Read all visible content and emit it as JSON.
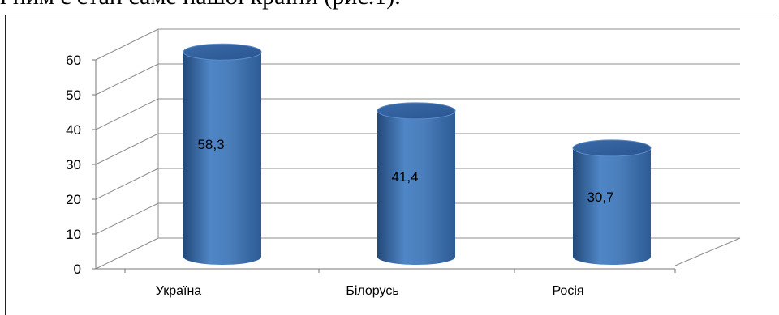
{
  "document": {
    "partial_text": "і ним є стан саме нашої країни (рис.1)."
  },
  "chart_data": {
    "type": "bar",
    "style": "3d-cylinder",
    "categories": [
      "Україна",
      "Білорусь",
      "Росія"
    ],
    "values": [
      58.3,
      41.4,
      30.7
    ],
    "data_labels": [
      "58,3",
      "41,4",
      "30,7"
    ],
    "title": "",
    "xlabel": "",
    "ylabel": "",
    "ylim": [
      0,
      60
    ],
    "yticks": [
      "0",
      "10",
      "20",
      "30",
      "40",
      "50",
      "60"
    ],
    "grid": true,
    "legend": "none",
    "colors": {
      "bar": "#4a7ebb",
      "bar_light": "#6f9bd6",
      "bar_dark": "#2a5692",
      "grid": "#8c8c8c"
    }
  }
}
